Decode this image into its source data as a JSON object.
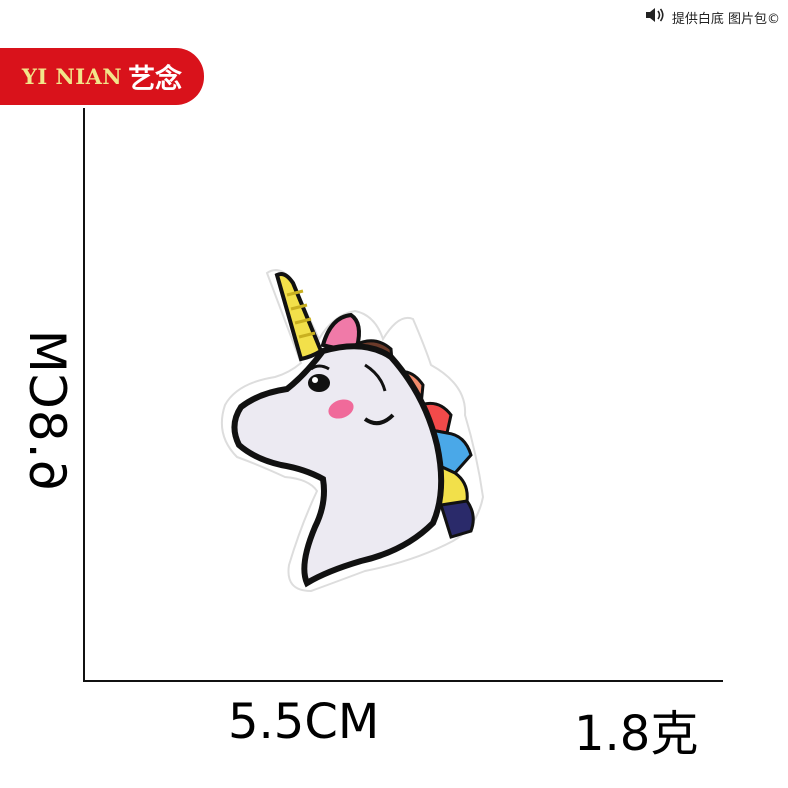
{
  "notice": {
    "icon": "speaker-icon",
    "text": "提供白底 图片包©"
  },
  "brand": {
    "name_en": "YI NIAN",
    "name_cn": "艺念",
    "color": "#d9121b"
  },
  "dimensions": {
    "height": "6.8CM",
    "width": "5.5CM",
    "weight": "1.8克"
  },
  "product": {
    "icon": "unicorn-patch-icon",
    "colors": {
      "horn": "#f2e04a",
      "outline": "#111111",
      "body": "#eceaf2",
      "felt": "#ffffff",
      "cheek": "#f06a9a",
      "ear": "#f07aa8",
      "mane": [
        "#6b3a2a",
        "#f08a6a",
        "#f24a4a",
        "#4aa8e8",
        "#f2e04a",
        "#2a2a6a"
      ]
    }
  }
}
